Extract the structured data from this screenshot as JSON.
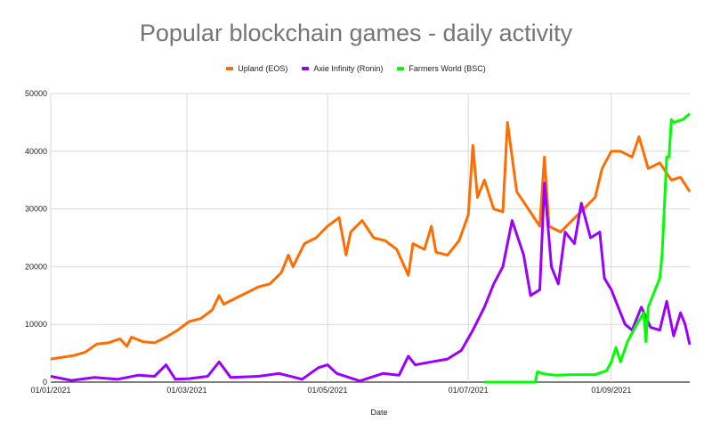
{
  "chart_data": {
    "type": "line",
    "title": "Popular blockchain games - daily activity",
    "xlabel": "Date",
    "ylabel": "",
    "ylim": [
      0,
      50000
    ],
    "xlim": [
      "2021-01-01",
      "2021-10-05"
    ],
    "yticks": [
      "0",
      "10000",
      "20000",
      "30000",
      "40000",
      "50000"
    ],
    "xticks": [
      {
        "date": "2021-01-01",
        "label": "01/01/2021"
      },
      {
        "date": "2021-03-01",
        "label": "01/03/2021"
      },
      {
        "date": "2021-05-01",
        "label": "01/05/2021"
      },
      {
        "date": "2021-07-01",
        "label": "01/07/2021"
      },
      {
        "date": "2021-09-01",
        "label": "01/09/2021"
      }
    ],
    "grid": true,
    "legend_position": "top",
    "series": [
      {
        "name": "Upland (EOS)",
        "color": "#ff6d01",
        "points": [
          [
            "2021-01-01",
            4000
          ],
          [
            "2021-01-06",
            4300
          ],
          [
            "2021-01-11",
            4600
          ],
          [
            "2021-01-16",
            5200
          ],
          [
            "2021-01-21",
            6600
          ],
          [
            "2021-01-26",
            6800
          ],
          [
            "2021-01-31",
            7500
          ],
          [
            "2021-02-03",
            6200
          ],
          [
            "2021-02-05",
            7800
          ],
          [
            "2021-02-10",
            7000
          ],
          [
            "2021-02-15",
            6800
          ],
          [
            "2021-02-20",
            7800
          ],
          [
            "2021-02-25",
            9000
          ],
          [
            "2021-03-02",
            10500
          ],
          [
            "2021-03-07",
            11000
          ],
          [
            "2021-03-12",
            12500
          ],
          [
            "2021-03-15",
            15000
          ],
          [
            "2021-03-17",
            13500
          ],
          [
            "2021-03-22",
            14500
          ],
          [
            "2021-03-27",
            15500
          ],
          [
            "2021-04-01",
            16500
          ],
          [
            "2021-04-06",
            17000
          ],
          [
            "2021-04-11",
            19000
          ],
          [
            "2021-04-14",
            22000
          ],
          [
            "2021-04-16",
            20000
          ],
          [
            "2021-04-21",
            24000
          ],
          [
            "2021-04-26",
            25000
          ],
          [
            "2021-05-01",
            27000
          ],
          [
            "2021-05-06",
            28500
          ],
          [
            "2021-05-09",
            22000
          ],
          [
            "2021-05-11",
            26000
          ],
          [
            "2021-05-16",
            28000
          ],
          [
            "2021-05-21",
            25000
          ],
          [
            "2021-05-26",
            24500
          ],
          [
            "2021-05-31",
            23000
          ],
          [
            "2021-06-05",
            18500
          ],
          [
            "2021-06-07",
            24000
          ],
          [
            "2021-06-12",
            23000
          ],
          [
            "2021-06-15",
            27000
          ],
          [
            "2021-06-17",
            22500
          ],
          [
            "2021-06-22",
            22000
          ],
          [
            "2021-06-27",
            24500
          ],
          [
            "2021-07-01",
            29000
          ],
          [
            "2021-07-03",
            41000
          ],
          [
            "2021-07-05",
            32000
          ],
          [
            "2021-07-08",
            35000
          ],
          [
            "2021-07-12",
            30000
          ],
          [
            "2021-07-16",
            29500
          ],
          [
            "2021-07-18",
            45000
          ],
          [
            "2021-07-22",
            33000
          ],
          [
            "2021-07-27",
            30000
          ],
          [
            "2021-08-01",
            27000
          ],
          [
            "2021-08-03",
            39000
          ],
          [
            "2021-08-05",
            27000
          ],
          [
            "2021-08-10",
            26000
          ],
          [
            "2021-08-15",
            28000
          ],
          [
            "2021-08-20",
            30000
          ],
          [
            "2021-08-25",
            32000
          ],
          [
            "2021-08-28",
            37000
          ],
          [
            "2021-09-01",
            40000
          ],
          [
            "2021-09-05",
            40000
          ],
          [
            "2021-09-10",
            39000
          ],
          [
            "2021-09-13",
            42500
          ],
          [
            "2021-09-17",
            37000
          ],
          [
            "2021-09-22",
            38000
          ],
          [
            "2021-09-27",
            35000
          ],
          [
            "2021-10-01",
            35500
          ],
          [
            "2021-10-05",
            33000
          ]
        ]
      },
      {
        "name": "Axie Infinity (Ronin)",
        "color": "#9900ff",
        "points": [
          [
            "2021-01-01",
            1000
          ],
          [
            "2021-01-10",
            300
          ],
          [
            "2021-01-20",
            800
          ],
          [
            "2021-01-30",
            500
          ],
          [
            "2021-02-08",
            1200
          ],
          [
            "2021-02-15",
            1000
          ],
          [
            "2021-02-20",
            3000
          ],
          [
            "2021-02-24",
            500
          ],
          [
            "2021-03-02",
            600
          ],
          [
            "2021-03-10",
            1000
          ],
          [
            "2021-03-15",
            3500
          ],
          [
            "2021-03-20",
            800
          ],
          [
            "2021-04-01",
            1000
          ],
          [
            "2021-04-10",
            1500
          ],
          [
            "2021-04-20",
            500
          ],
          [
            "2021-04-27",
            2500
          ],
          [
            "2021-05-01",
            3000
          ],
          [
            "2021-05-05",
            1500
          ],
          [
            "2021-05-15",
            200
          ],
          [
            "2021-05-25",
            1500
          ],
          [
            "2021-06-01",
            1200
          ],
          [
            "2021-06-05",
            4500
          ],
          [
            "2021-06-08",
            3000
          ],
          [
            "2021-06-15",
            3500
          ],
          [
            "2021-06-22",
            4000
          ],
          [
            "2021-06-28",
            5500
          ],
          [
            "2021-07-03",
            9000
          ],
          [
            "2021-07-08",
            13000
          ],
          [
            "2021-07-12",
            17000
          ],
          [
            "2021-07-16",
            20000
          ],
          [
            "2021-07-20",
            28000
          ],
          [
            "2021-07-25",
            22000
          ],
          [
            "2021-07-28",
            15000
          ],
          [
            "2021-08-01",
            16000
          ],
          [
            "2021-08-03",
            34500
          ],
          [
            "2021-08-06",
            20000
          ],
          [
            "2021-08-09",
            17000
          ],
          [
            "2021-08-12",
            26000
          ],
          [
            "2021-08-16",
            24000
          ],
          [
            "2021-08-19",
            31000
          ],
          [
            "2021-08-23",
            25000
          ],
          [
            "2021-08-27",
            26000
          ],
          [
            "2021-08-29",
            18000
          ],
          [
            "2021-09-01",
            16000
          ],
          [
            "2021-09-04",
            13000
          ],
          [
            "2021-09-07",
            10000
          ],
          [
            "2021-09-10",
            9000
          ],
          [
            "2021-09-14",
            13000
          ],
          [
            "2021-09-18",
            9500
          ],
          [
            "2021-09-22",
            9000
          ],
          [
            "2021-09-25",
            14000
          ],
          [
            "2021-09-28",
            8000
          ],
          [
            "2021-10-01",
            12000
          ],
          [
            "2021-10-03",
            10000
          ],
          [
            "2021-10-05",
            6500
          ]
        ]
      },
      {
        "name": "Farmers World (BSC)",
        "color": "#00ff00",
        "points": [
          [
            "2021-07-08",
            0
          ],
          [
            "2021-07-30",
            0
          ],
          [
            "2021-07-31",
            1800
          ],
          [
            "2021-08-03",
            1400
          ],
          [
            "2021-08-08",
            1200
          ],
          [
            "2021-08-15",
            1300
          ],
          [
            "2021-08-25",
            1300
          ],
          [
            "2021-08-30",
            2000
          ],
          [
            "2021-09-01",
            3500
          ],
          [
            "2021-09-03",
            6000
          ],
          [
            "2021-09-05",
            3500
          ],
          [
            "2021-09-08",
            7000
          ],
          [
            "2021-09-12",
            10000
          ],
          [
            "2021-09-15",
            12000
          ],
          [
            "2021-09-16",
            7000
          ],
          [
            "2021-09-17",
            13000
          ],
          [
            "2021-09-20",
            16000
          ],
          [
            "2021-09-22",
            18000
          ],
          [
            "2021-09-23",
            22000
          ],
          [
            "2021-09-25",
            39000
          ],
          [
            "2021-09-26",
            39000
          ],
          [
            "2021-09-27",
            45500
          ],
          [
            "2021-09-28",
            45000
          ],
          [
            "2021-10-02",
            45500
          ],
          [
            "2021-10-05",
            46500
          ]
        ]
      }
    ]
  }
}
